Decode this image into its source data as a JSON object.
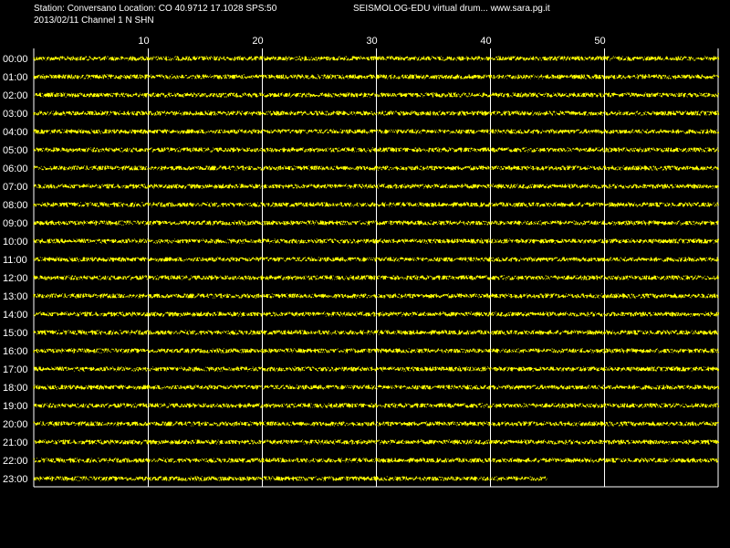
{
  "header": {
    "station_line": "Station: Conversano Location: CO 40.9712 17.1028 SPS:50",
    "date_line": "2013/02/11  Channel 1 N SHN",
    "product_line": "SEISMOLOG-EDU virtual drum... www.sara.pg.it"
  },
  "colors": {
    "background": "#000000",
    "trace": "#ffff00",
    "grid": "#ffffff",
    "text": "#ffffff"
  },
  "chart_data": {
    "type": "line",
    "title": "",
    "xlabel": "",
    "ylabel": "",
    "x_ticks": [
      10,
      20,
      30,
      40,
      50
    ],
    "xlim": [
      0,
      60
    ],
    "rows": [
      "00:00",
      "01:00",
      "02:00",
      "03:00",
      "04:00",
      "05:00",
      "06:00",
      "07:00",
      "08:00",
      "09:00",
      "10:00",
      "11:00",
      "12:00",
      "13:00",
      "14:00",
      "15:00",
      "16:00",
      "17:00",
      "18:00",
      "19:00",
      "20:00",
      "21:00",
      "22:00",
      "23:00"
    ],
    "row_end_minute": [
      60,
      60,
      60,
      60,
      60,
      60,
      60,
      60,
      60,
      60,
      60,
      60,
      60,
      60,
      60,
      60,
      60,
      60,
      60,
      60,
      60,
      60,
      60,
      45
    ],
    "grid": true,
    "legend": "none"
  }
}
